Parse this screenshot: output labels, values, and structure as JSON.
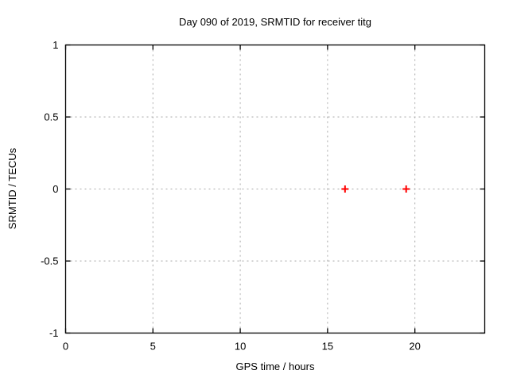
{
  "chart_data": {
    "type": "scatter",
    "title": "Day 090 of 2019, SRMTID for receiver titg",
    "xlabel": "GPS time / hours",
    "ylabel": "SRMTID / TECUs",
    "xlim": [
      0,
      24
    ],
    "ylim": [
      -1,
      1
    ],
    "xticks": [
      0,
      5,
      10,
      15,
      20
    ],
    "yticks": [
      -1,
      -0.5,
      0,
      0.5,
      1
    ],
    "grid": true,
    "legend": "none",
    "series": [
      {
        "name": "SRMTID",
        "marker": "plus",
        "color": "#ff0000",
        "points": [
          {
            "x": 16.0,
            "y": 0.0
          },
          {
            "x": 19.5,
            "y": 0.0
          }
        ]
      }
    ],
    "colors": {
      "background": "#ffffff",
      "axis": "#000000",
      "grid": "#a8a8a8",
      "text": "#000000",
      "marker": "#ff0000"
    }
  }
}
